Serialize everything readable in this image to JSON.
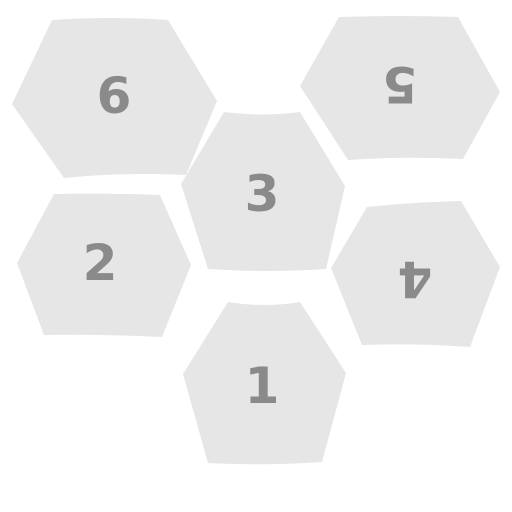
{
  "puzzle": {
    "tiles": [
      {
        "id": "tile-6",
        "label": "6"
      },
      {
        "id": "tile-5",
        "label": "5"
      },
      {
        "id": "tile-3",
        "label": "3"
      },
      {
        "id": "tile-2",
        "label": "2"
      },
      {
        "id": "tile-4",
        "label": "4"
      },
      {
        "id": "tile-1",
        "label": "1"
      }
    ],
    "colors": {
      "tile_fill": "#e6e6e6",
      "label": "#8a8a8a",
      "background": "#ffffff"
    }
  }
}
